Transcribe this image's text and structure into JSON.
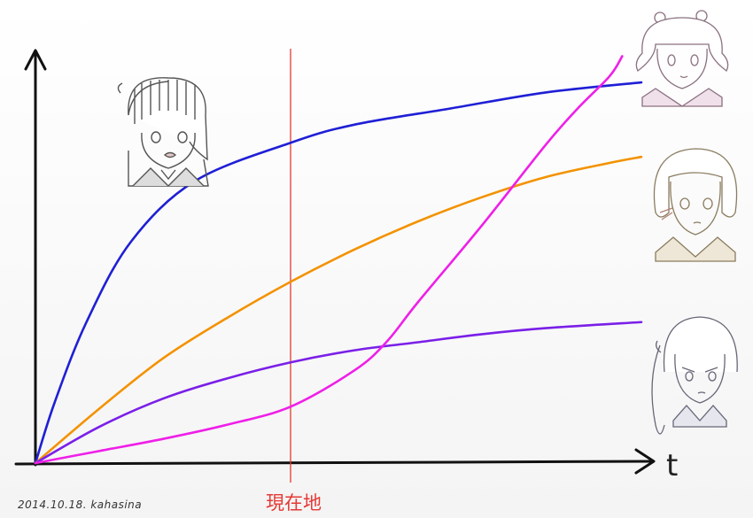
{
  "chart_data": {
    "type": "line",
    "xlabel": "t",
    "ylabel": "",
    "xlim": [
      0,
      10
    ],
    "ylim": [
      0,
      10
    ],
    "grid": false,
    "marker": {
      "x": 4,
      "label": "現在地",
      "color": "#e53935"
    },
    "series": [
      {
        "color": "#1f1fd6",
        "x": [
          0,
          0.3,
          0.8,
          1.5,
          2.5,
          4.0,
          5.0,
          6.5,
          8.0,
          9.5
        ],
        "y": [
          0,
          1.5,
          3.5,
          5.5,
          7.0,
          7.95,
          8.4,
          8.8,
          9.2,
          9.45
        ]
      },
      {
        "color": "#f39200",
        "x": [
          0,
          1,
          2,
          3,
          4,
          5,
          6,
          7,
          8,
          9,
          9.5
        ],
        "y": [
          0,
          1.35,
          2.6,
          3.6,
          4.5,
          5.3,
          6.0,
          6.6,
          7.1,
          7.45,
          7.6
        ]
      },
      {
        "color": "#7a1fe8",
        "x": [
          0,
          1,
          2,
          3,
          4,
          5,
          6,
          7,
          8,
          9.5
        ],
        "y": [
          0,
          0.9,
          1.6,
          2.1,
          2.5,
          2.8,
          3.0,
          3.2,
          3.35,
          3.5
        ]
      },
      {
        "color": "#ef1fe8",
        "x": [
          0,
          1,
          2,
          3,
          4,
          5,
          5.5,
          6,
          7,
          8,
          8.5,
          9,
          9.2
        ],
        "y": [
          0,
          0.3,
          0.6,
          0.95,
          1.4,
          2.3,
          3.0,
          4.0,
          5.9,
          7.9,
          8.8,
          9.6,
          10.1
        ]
      }
    ]
  },
  "annotation": {
    "signature": "2014.10.18. kahasina"
  },
  "icons": {
    "center_top": "chibi-face-boy-icon",
    "right_top": "chibi-face-twintail-icon",
    "right_middle": "chibi-face-bob-hair-icon",
    "right_bottom": "chibi-face-sidetail-icon"
  }
}
